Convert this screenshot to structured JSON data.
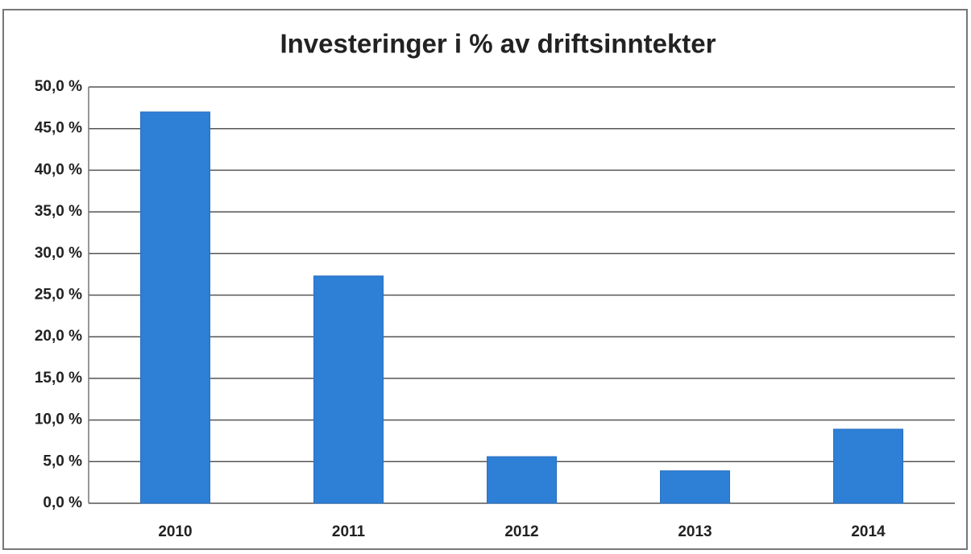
{
  "chart_data": {
    "type": "bar",
    "title": "Investeringer i % av driftsinntekter",
    "categories": [
      "2010",
      "2011",
      "2012",
      "2013",
      "2014"
    ],
    "values": [
      47.0,
      27.3,
      5.6,
      3.9,
      8.9
    ],
    "color": "#2e7fd6",
    "ylim": [
      0,
      50
    ],
    "yticks": [
      {
        "value": 0,
        "label": "0,0 %"
      },
      {
        "value": 5,
        "label": "5,0 %"
      },
      {
        "value": 10,
        "label": "10,0 %"
      },
      {
        "value": 15,
        "label": "15,0 %"
      },
      {
        "value": 20,
        "label": "20,0 %"
      },
      {
        "value": 25,
        "label": "25,0 %"
      },
      {
        "value": 30,
        "label": "30,0 %"
      },
      {
        "value": 35,
        "label": "35,0 %"
      },
      {
        "value": 40,
        "label": "40,0 %"
      },
      {
        "value": 45,
        "label": "45,0 %"
      },
      {
        "value": 50,
        "label": "50,0 %"
      }
    ],
    "grid": true
  }
}
